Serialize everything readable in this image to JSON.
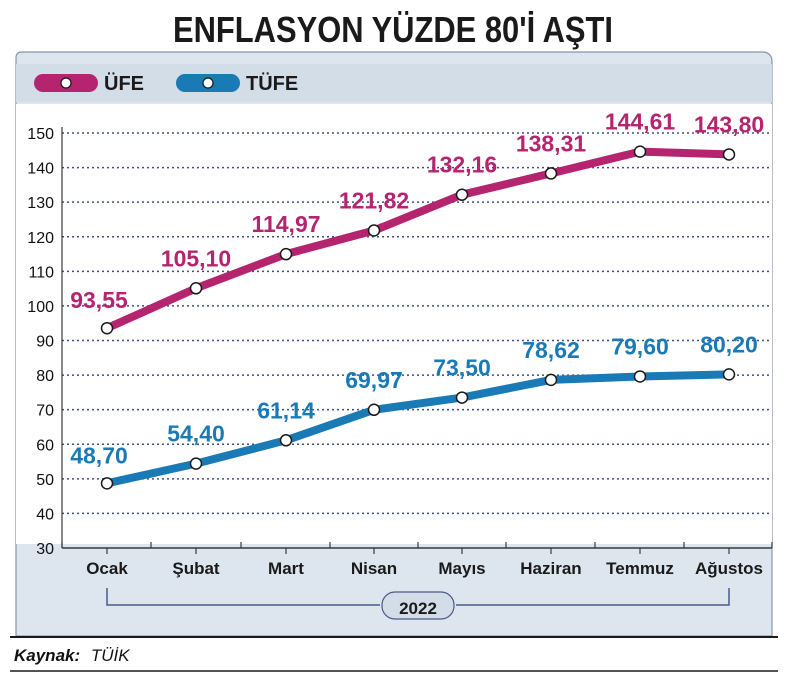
{
  "chart_data": {
    "type": "line",
    "title": "ENFLASYON YÜZDE 80'İ AŞTI",
    "categories": [
      "Ocak",
      "Şubat",
      "Mart",
      "Nisan",
      "Mayıs",
      "Haziran",
      "Temmuz",
      "Ağustos"
    ],
    "year_label": "2022",
    "ylim": [
      30,
      150
    ],
    "yticks": [
      30,
      40,
      50,
      60,
      70,
      80,
      90,
      100,
      110,
      120,
      130,
      140,
      150
    ],
    "grid": true,
    "legend_position": "top-left",
    "series": [
      {
        "name": "ÜFE",
        "color": "#b5246e",
        "values": [
          93.55,
          105.1,
          114.97,
          121.82,
          132.16,
          138.31,
          144.61,
          143.8
        ],
        "labels": [
          "93,55",
          "105,10",
          "114,97",
          "121,82",
          "132,16",
          "138,31",
          "144,61",
          "143,80"
        ]
      },
      {
        "name": "TÜFE",
        "color": "#1a7ab5",
        "values": [
          48.7,
          54.4,
          61.14,
          69.97,
          73.5,
          78.62,
          79.6,
          80.2
        ],
        "labels": [
          "48,70",
          "54,40",
          "61,14",
          "69,97",
          "73,50",
          "78,62",
          "79,60",
          "80,20"
        ]
      }
    ]
  },
  "source": {
    "label": "Kaynak:",
    "value": "TÜİK"
  },
  "colors": {
    "panel_bg": "#dde6ee",
    "grid": "#3d4f86"
  }
}
